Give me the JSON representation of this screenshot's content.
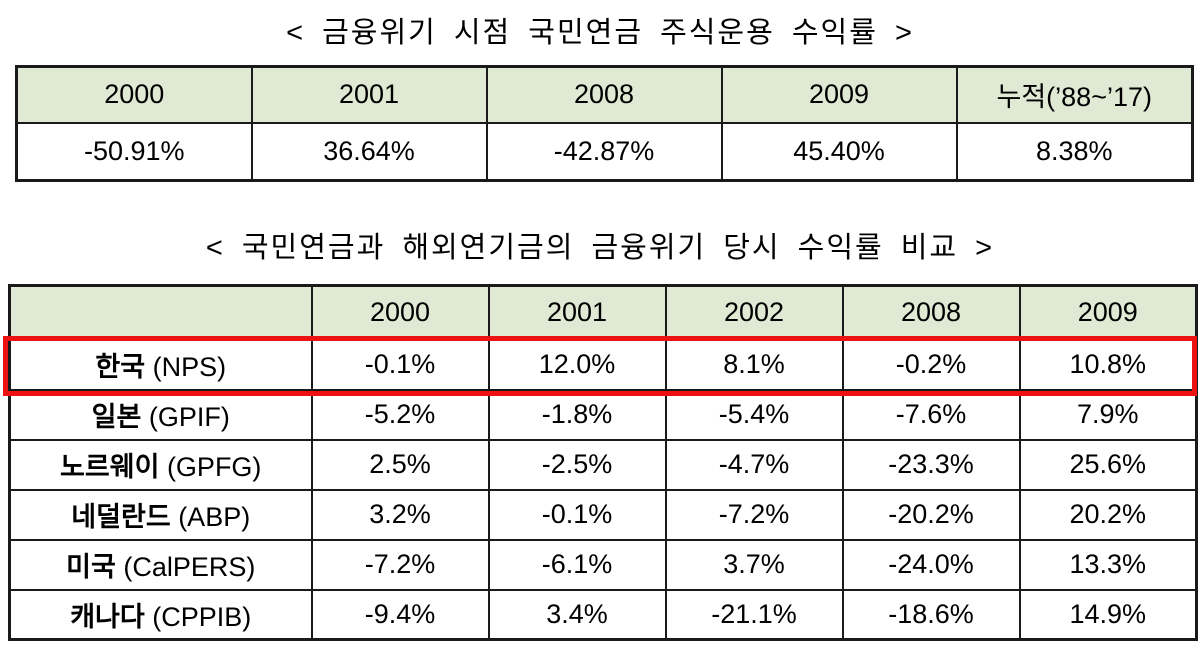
{
  "document": {
    "background": "#ffffff"
  },
  "colors": {
    "header_green": "#dfe9d3",
    "table_border": "#1a1a1a",
    "highlight_red": "#ee1111",
    "text": "#000000"
  },
  "table1": {
    "title": "< 금융위기 시점 국민연금 주식운용 수익률 >",
    "headers": [
      "2000",
      "2001",
      "2008",
      "2009",
      "누적(’88~’17)"
    ],
    "values": [
      "-50.91%",
      "36.64%",
      "-42.87%",
      "45.40%",
      "8.38%"
    ]
  },
  "table2": {
    "title": "< 국민연금과 해외연기금의 금융위기 당시 수익률 비교 >",
    "corner_header": "",
    "year_headers": [
      "2000",
      "2001",
      "2002",
      "2008",
      "2009"
    ],
    "rows": [
      {
        "country": "한국",
        "fund": "(NPS)",
        "highlighted": true,
        "values": [
          "-0.1%",
          "12.0%",
          "8.1%",
          "-0.2%",
          "10.8%"
        ]
      },
      {
        "country": "일본",
        "fund": "(GPIF)",
        "highlighted": false,
        "values": [
          "-5.2%",
          "-1.8%",
          "-5.4%",
          "-7.6%",
          "7.9%"
        ]
      },
      {
        "country": "노르웨이",
        "fund": "(GPFG)",
        "highlighted": false,
        "values": [
          "2.5%",
          "-2.5%",
          "-4.7%",
          "-23.3%",
          "25.6%"
        ]
      },
      {
        "country": "네덜란드",
        "fund": "(ABP)",
        "highlighted": false,
        "values": [
          "3.2%",
          "-0.1%",
          "-7.2%",
          "-20.2%",
          "20.2%"
        ]
      },
      {
        "country": "미국",
        "fund": "(CalPERS)",
        "highlighted": false,
        "values": [
          "-7.2%",
          "-6.1%",
          "3.7%",
          "-24.0%",
          "13.3%"
        ]
      },
      {
        "country": "캐나다",
        "fund": "(CPPIB)",
        "highlighted": false,
        "values": [
          "-9.4%",
          "3.4%",
          "-21.1%",
          "-18.6%",
          "14.9%"
        ]
      }
    ]
  }
}
